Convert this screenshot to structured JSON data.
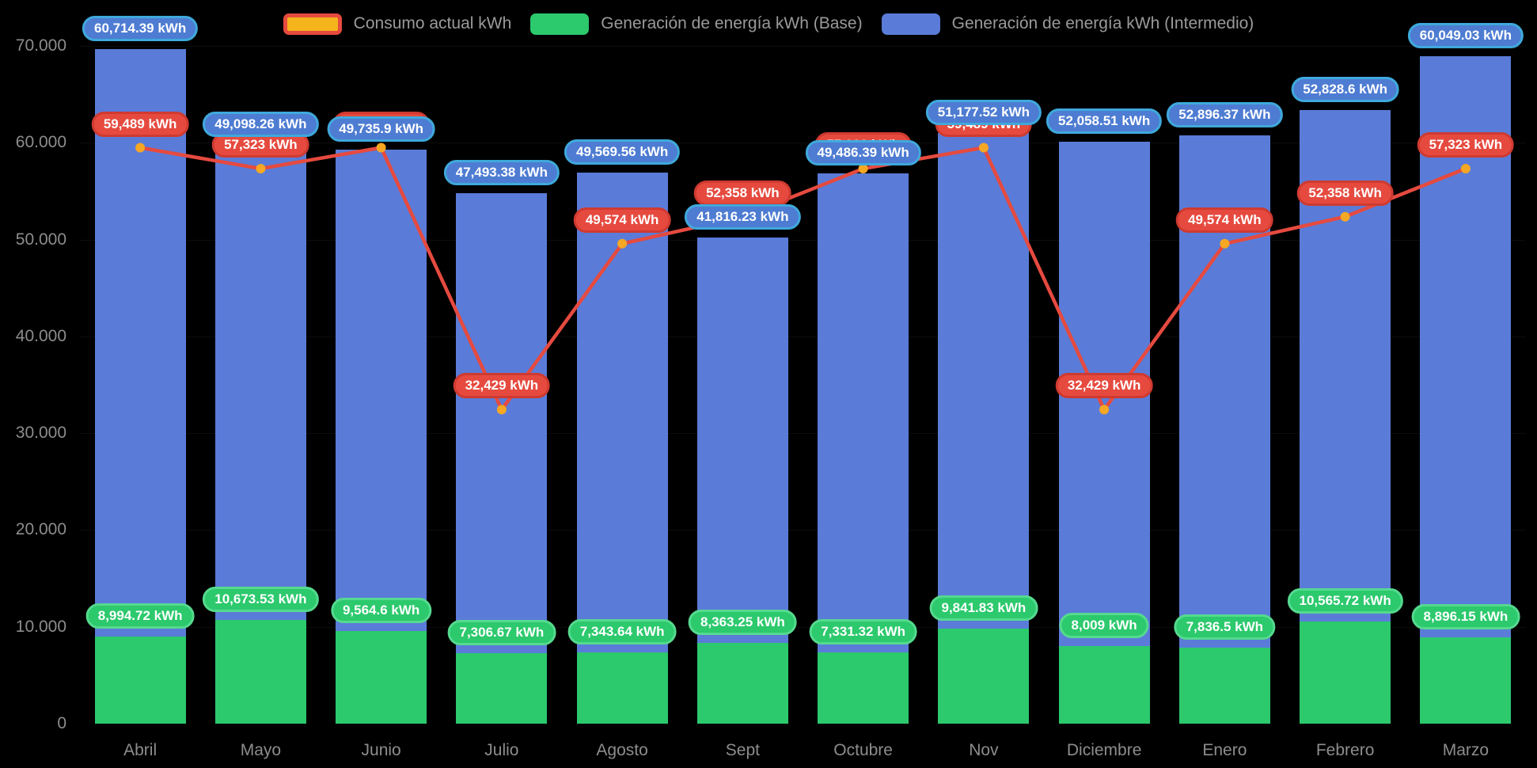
{
  "legend": [
    {
      "label": "Consumo actual kWh",
      "swatch_fill": "#f5b31c",
      "swatch_border": "#e64a3f"
    },
    {
      "label": "Generación de energía kWh (Base)",
      "swatch_fill": "#2cc96d",
      "swatch_border": "#2cc96d"
    },
    {
      "label": "Generación de energía kWh (Intermedio)",
      "swatch_fill": "#5a7cd8",
      "swatch_border": "#5a7cd8"
    }
  ],
  "colors": {
    "background": "#000000",
    "axis_text": "#8d8d8d",
    "legend_text": "#9a9a9a",
    "bar_base": "#2cc96d",
    "bar_intermedio": "#5a7cd8",
    "line_consumo": "#e64a3f",
    "line_marker": "#f6a723",
    "pill_base_fill": "#2cc96d",
    "pill_intermedio_fill": "#4e7cd2",
    "pill_consumo_fill": "#e64a3f"
  },
  "chart_data": {
    "type": "bar",
    "stacked": true,
    "legend_position": "top",
    "grid": "subtle-horizontal",
    "categories": [
      "Abril",
      "Mayo",
      "Junio",
      "Julio",
      "Agosto",
      "Sept",
      "Octubre",
      "Nov",
      "Diciembre",
      "Enero",
      "Febrero",
      "Marzo"
    ],
    "ylim": [
      0,
      70000
    ],
    "yticks": [
      {
        "value": 0,
        "label": "0"
      },
      {
        "value": 10000,
        "label": "10.000"
      },
      {
        "value": 20000,
        "label": "20.000"
      },
      {
        "value": 30000,
        "label": "30.000"
      },
      {
        "value": 40000,
        "label": "40.000"
      },
      {
        "value": 50000,
        "label": "50.000"
      },
      {
        "value": 60000,
        "label": "60.000"
      },
      {
        "value": 70000,
        "label": "70.000"
      }
    ],
    "series": [
      {
        "name": "Generación de energía kWh (Base)",
        "type": "bar",
        "color": "#2cc96d",
        "values": [
          8994.72,
          10673.53,
          9564.6,
          7306.67,
          7343.64,
          8363.25,
          7331.32,
          9841.83,
          8009,
          7836.5,
          10565.72,
          8896.15
        ],
        "labels": [
          "8,994.72 kWh",
          "10,673.53 kWh",
          "9,564.6 kWh",
          "7,306.67 kWh",
          "7,343.64 kWh",
          "8,363.25 kWh",
          "7,331.32 kWh",
          "9,841.83 kWh",
          "8,009 kWh",
          "7,836.5 kWh",
          "10,565.72 kWh",
          "8,896.15 kWh"
        ]
      },
      {
        "name": "Generación de energía kWh (Intermedio)",
        "type": "bar",
        "color": "#5a7cd8",
        "values": [
          60714.39,
          49098.26,
          49735.9,
          47493.38,
          49569.56,
          41816.23,
          49486.39,
          51177.52,
          52058.51,
          52896.37,
          52828.6,
          60049.03
        ],
        "labels": [
          "60,714.39 kWh",
          "49,098.26 kWh",
          "49,735.9 kWh",
          "47,493.38 kWh",
          "49,569.56 kWh",
          "41,816.23 kWh",
          "49,486.39 kWh",
          "51,177.52 kWh",
          "52,058.51 kWh",
          "52,896.37 kWh",
          "52,828.6 kWh",
          "60,049.03 kWh"
        ]
      },
      {
        "name": "Consumo actual kWh",
        "type": "line",
        "color": "#e64a3f",
        "marker_color": "#f6a723",
        "values": [
          59489,
          57323,
          59489,
          32429,
          49574,
          52358,
          57323,
          59489,
          32429,
          49574,
          52358,
          57323
        ],
        "labels": [
          "59,489 kWh",
          "57,323 kWh",
          "59,489 kWh",
          "32,429 kWh",
          "49,574 kWh",
          "52,358 kWh",
          "57,323 kWh",
          "59,489 kWh",
          "32,429 kWh",
          "49,574 kWh",
          "52,358 kWh",
          "57,323 kWh"
        ]
      }
    ]
  }
}
